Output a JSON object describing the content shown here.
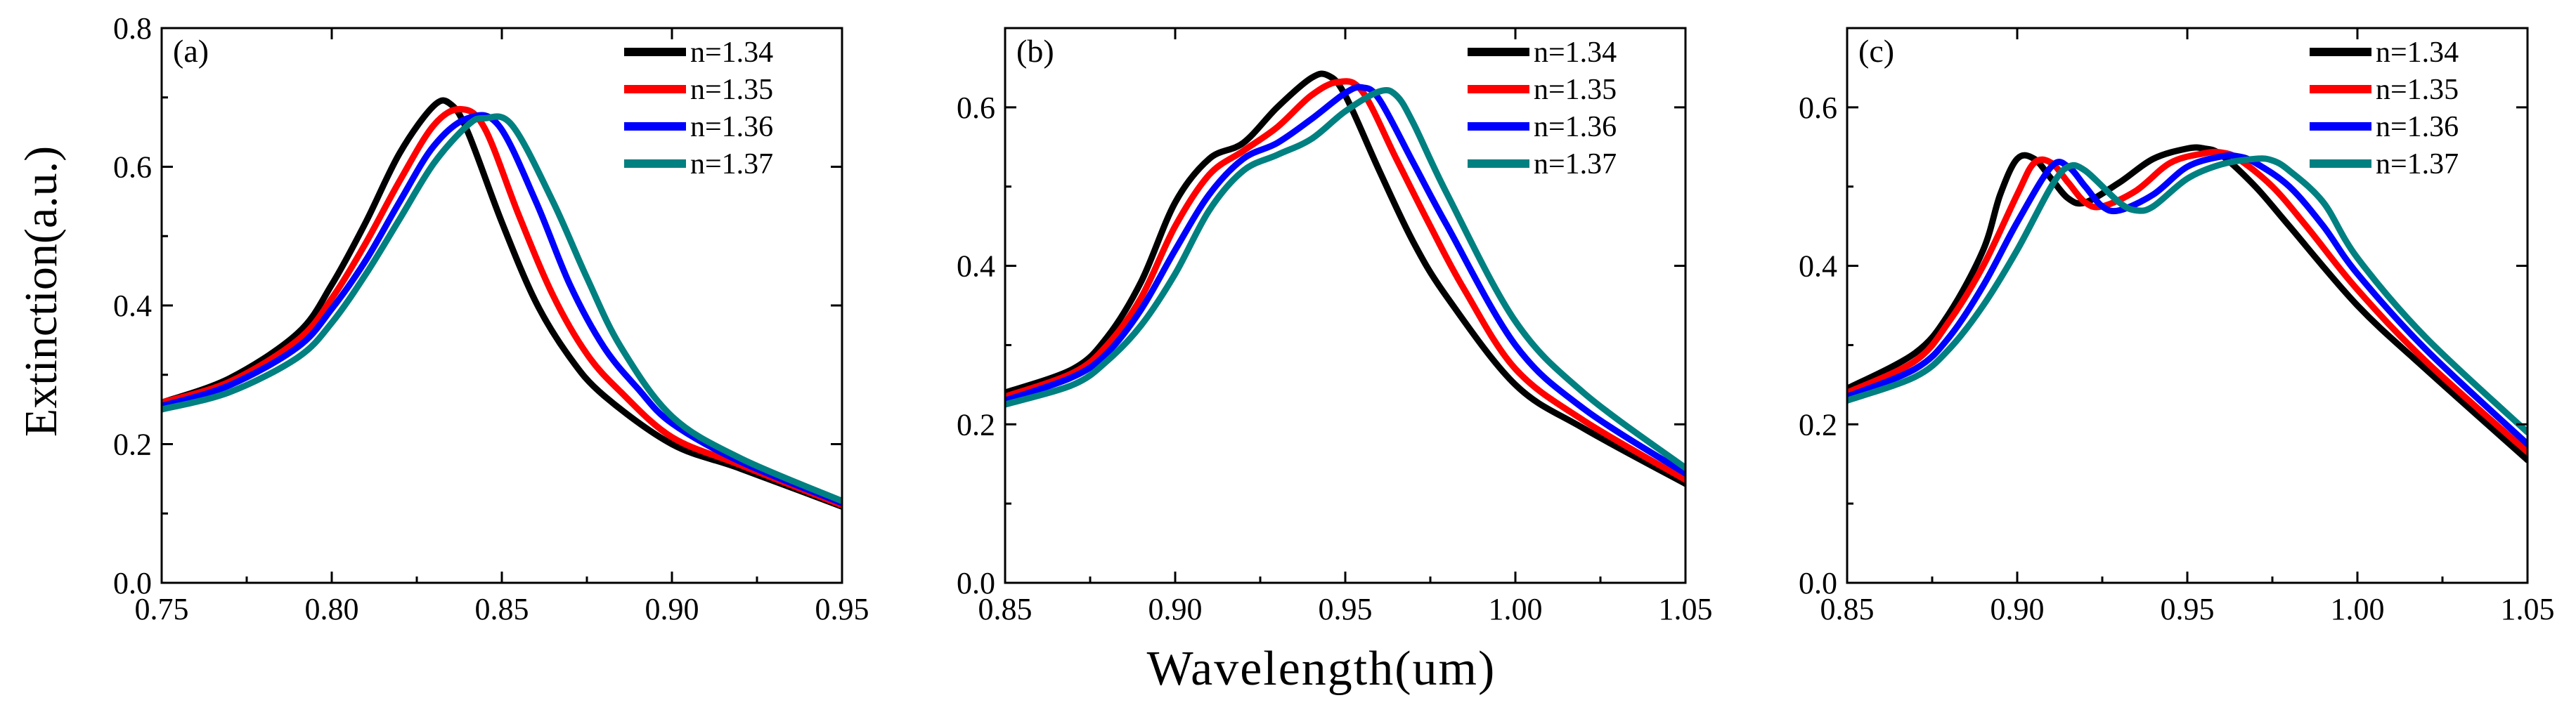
{
  "shared_labels": {
    "ylabel": "Extinction(a.u.)",
    "xlabel": "Wavelength(um)"
  },
  "chart_data": [
    {
      "type": "line",
      "panel": "(a)",
      "xlim": [
        0.75,
        0.95
      ],
      "ylim": [
        0.0,
        0.8
      ],
      "xticks": [
        "0.75",
        "0.80",
        "0.85",
        "0.90",
        "0.95"
      ],
      "yticks": [
        "0.0",
        "0.2",
        "0.4",
        "0.6",
        "0.8"
      ],
      "legend_position": "top-right",
      "series": [
        {
          "name": "n=1.34",
          "color": "#000000",
          "x": [
            0.75,
            0.77,
            0.79,
            0.8,
            0.81,
            0.82,
            0.83,
            0.835,
            0.84,
            0.85,
            0.86,
            0.87,
            0.88,
            0.9,
            0.92,
            0.95
          ],
          "y": [
            0.26,
            0.295,
            0.36,
            0.43,
            0.52,
            0.62,
            0.688,
            0.69,
            0.65,
            0.52,
            0.405,
            0.325,
            0.27,
            0.2,
            0.165,
            0.11
          ]
        },
        {
          "name": "n=1.35",
          "color": "#ff0000",
          "x": [
            0.75,
            0.77,
            0.79,
            0.8,
            0.81,
            0.82,
            0.83,
            0.838,
            0.845,
            0.855,
            0.865,
            0.875,
            0.885,
            0.9,
            0.92,
            0.95
          ],
          "y": [
            0.26,
            0.29,
            0.35,
            0.41,
            0.49,
            0.58,
            0.66,
            0.683,
            0.655,
            0.53,
            0.415,
            0.33,
            0.275,
            0.21,
            0.17,
            0.112
          ]
        },
        {
          "name": "n=1.36",
          "color": "#0000ff",
          "x": [
            0.75,
            0.77,
            0.79,
            0.8,
            0.81,
            0.82,
            0.83,
            0.84,
            0.849,
            0.86,
            0.87,
            0.88,
            0.89,
            0.9,
            0.92,
            0.95
          ],
          "y": [
            0.255,
            0.285,
            0.34,
            0.395,
            0.465,
            0.55,
            0.63,
            0.67,
            0.66,
            0.55,
            0.43,
            0.34,
            0.28,
            0.23,
            0.175,
            0.115
          ]
        },
        {
          "name": "n=1.37",
          "color": "#008080",
          "x": [
            0.75,
            0.77,
            0.79,
            0.8,
            0.81,
            0.82,
            0.83,
            0.84,
            0.845,
            0.853,
            0.865,
            0.875,
            0.885,
            0.9,
            0.92,
            0.95
          ],
          "y": [
            0.25,
            0.275,
            0.325,
            0.375,
            0.445,
            0.525,
            0.605,
            0.66,
            0.67,
            0.66,
            0.55,
            0.44,
            0.34,
            0.24,
            0.18,
            0.118
          ]
        }
      ]
    },
    {
      "type": "line",
      "panel": "(b)",
      "xlim": [
        0.85,
        1.05
      ],
      "ylim": [
        0.0,
        0.7
      ],
      "xticks": [
        "0.85",
        "0.90",
        "0.95",
        "1.00",
        "1.05"
      ],
      "yticks": [
        "0.0",
        "0.2",
        "0.4",
        "0.6"
      ],
      "legend_position": "top-right",
      "series": [
        {
          "name": "n=1.34",
          "color": "#000000",
          "x": [
            0.85,
            0.87,
            0.88,
            0.89,
            0.9,
            0.91,
            0.92,
            0.93,
            0.94,
            0.945,
            0.95,
            0.96,
            0.97,
            0.98,
            1.0,
            1.02,
            1.05
          ],
          "y": [
            0.24,
            0.27,
            0.31,
            0.38,
            0.48,
            0.535,
            0.555,
            0.6,
            0.637,
            0.64,
            0.615,
            0.52,
            0.43,
            0.36,
            0.25,
            0.195,
            0.125
          ]
        },
        {
          "name": "n=1.35",
          "color": "#ff0000",
          "x": [
            0.85,
            0.87,
            0.88,
            0.89,
            0.9,
            0.91,
            0.92,
            0.93,
            0.94,
            0.948,
            0.955,
            0.965,
            0.975,
            0.985,
            1.0,
            1.02,
            1.05
          ],
          "y": [
            0.235,
            0.265,
            0.3,
            0.36,
            0.45,
            0.515,
            0.545,
            0.575,
            0.615,
            0.632,
            0.62,
            0.535,
            0.45,
            0.37,
            0.27,
            0.205,
            0.13
          ]
        },
        {
          "name": "n=1.36",
          "color": "#0000ff",
          "x": [
            0.85,
            0.87,
            0.88,
            0.89,
            0.9,
            0.91,
            0.92,
            0.93,
            0.94,
            0.95,
            0.955,
            0.96,
            0.97,
            0.98,
            1.0,
            1.02,
            1.05
          ],
          "y": [
            0.23,
            0.26,
            0.29,
            0.345,
            0.42,
            0.49,
            0.535,
            0.555,
            0.585,
            0.618,
            0.625,
            0.61,
            0.53,
            0.45,
            0.3,
            0.22,
            0.138
          ]
        },
        {
          "name": "n=1.37",
          "color": "#008080",
          "x": [
            0.85,
            0.87,
            0.88,
            0.89,
            0.9,
            0.91,
            0.92,
            0.93,
            0.94,
            0.95,
            0.96,
            0.965,
            0.97,
            0.98,
            1.0,
            1.02,
            1.05
          ],
          "y": [
            0.225,
            0.25,
            0.28,
            0.325,
            0.39,
            0.47,
            0.52,
            0.54,
            0.56,
            0.595,
            0.62,
            0.615,
            0.58,
            0.49,
            0.33,
            0.24,
            0.145
          ]
        }
      ]
    },
    {
      "type": "line",
      "panel": "(c)",
      "xlim": [
        0.85,
        1.05
      ],
      "ylim": [
        0.0,
        0.7
      ],
      "xticks": [
        "0.85",
        "0.90",
        "0.95",
        "1.00",
        "1.05"
      ],
      "yticks": [
        "0.0",
        "0.2",
        "0.4",
        "0.6"
      ],
      "legend_position": "top-right",
      "series": [
        {
          "name": "n=1.34",
          "color": "#000000",
          "x": [
            0.85,
            0.87,
            0.88,
            0.89,
            0.895,
            0.9,
            0.905,
            0.91,
            0.915,
            0.92,
            0.93,
            0.94,
            0.95,
            0.955,
            0.96,
            0.97,
            0.98,
            1.0,
            1.02,
            1.05
          ],
          "y": [
            0.245,
            0.29,
            0.34,
            0.42,
            0.49,
            0.535,
            0.535,
            0.51,
            0.485,
            0.48,
            0.505,
            0.535,
            0.548,
            0.548,
            0.54,
            0.5,
            0.45,
            0.35,
            0.27,
            0.155
          ]
        },
        {
          "name": "n=1.35",
          "color": "#ff0000",
          "x": [
            0.85,
            0.87,
            0.88,
            0.89,
            0.9,
            0.905,
            0.91,
            0.915,
            0.92,
            0.925,
            0.935,
            0.945,
            0.955,
            0.96,
            0.965,
            0.975,
            0.985,
            1.0,
            1.02,
            1.05
          ],
          "y": [
            0.24,
            0.28,
            0.33,
            0.4,
            0.49,
            0.53,
            0.53,
            0.505,
            0.48,
            0.475,
            0.495,
            0.53,
            0.542,
            0.543,
            0.535,
            0.5,
            0.45,
            0.37,
            0.28,
            0.165
          ]
        },
        {
          "name": "n=1.36",
          "color": "#0000ff",
          "x": [
            0.85,
            0.87,
            0.88,
            0.89,
            0.9,
            0.91,
            0.915,
            0.92,
            0.925,
            0.93,
            0.94,
            0.95,
            0.96,
            0.965,
            0.97,
            0.98,
            0.99,
            1.0,
            1.02,
            1.05
          ],
          "y": [
            0.235,
            0.27,
            0.31,
            0.375,
            0.455,
            0.525,
            0.525,
            0.5,
            0.475,
            0.47,
            0.49,
            0.525,
            0.538,
            0.538,
            0.53,
            0.5,
            0.45,
            0.39,
            0.295,
            0.175
          ]
        },
        {
          "name": "n=1.37",
          "color": "#008080",
          "x": [
            0.85,
            0.87,
            0.88,
            0.89,
            0.9,
            0.91,
            0.915,
            0.92,
            0.93,
            0.935,
            0.94,
            0.95,
            0.96,
            0.97,
            0.975,
            0.98,
            0.99,
            1.0,
            1.02,
            1.05
          ],
          "y": [
            0.23,
            0.26,
            0.295,
            0.35,
            0.42,
            0.5,
            0.525,
            0.52,
            0.48,
            0.47,
            0.475,
            0.51,
            0.528,
            0.535,
            0.533,
            0.52,
            0.48,
            0.41,
            0.31,
            0.19
          ]
        }
      ]
    }
  ]
}
